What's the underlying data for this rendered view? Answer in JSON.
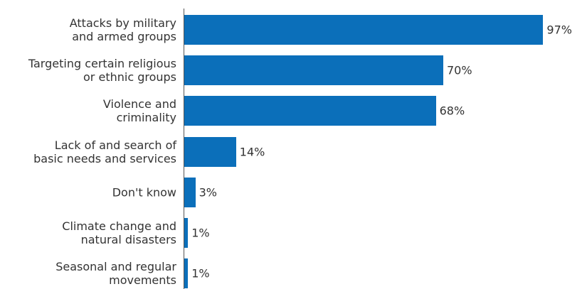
{
  "chart_data": {
    "type": "bar",
    "orientation": "horizontal",
    "color": "#0b6fba",
    "categories": [
      "Attacks by military\nand armed groups",
      "Targeting certain religious\nor ethnic groups",
      "Violence and\ncriminality",
      "Lack of and search of\nbasic needs and services",
      "Don't know",
      "Climate change and\nnatural disasters",
      "Seasonal and regular\nmovements"
    ],
    "values": [
      97,
      70,
      68,
      14,
      3,
      1,
      1
    ],
    "value_labels": [
      "97%",
      "70%",
      "68%",
      "14%",
      "3%",
      "1%",
      "1%"
    ],
    "xlim": [
      0,
      100
    ]
  }
}
